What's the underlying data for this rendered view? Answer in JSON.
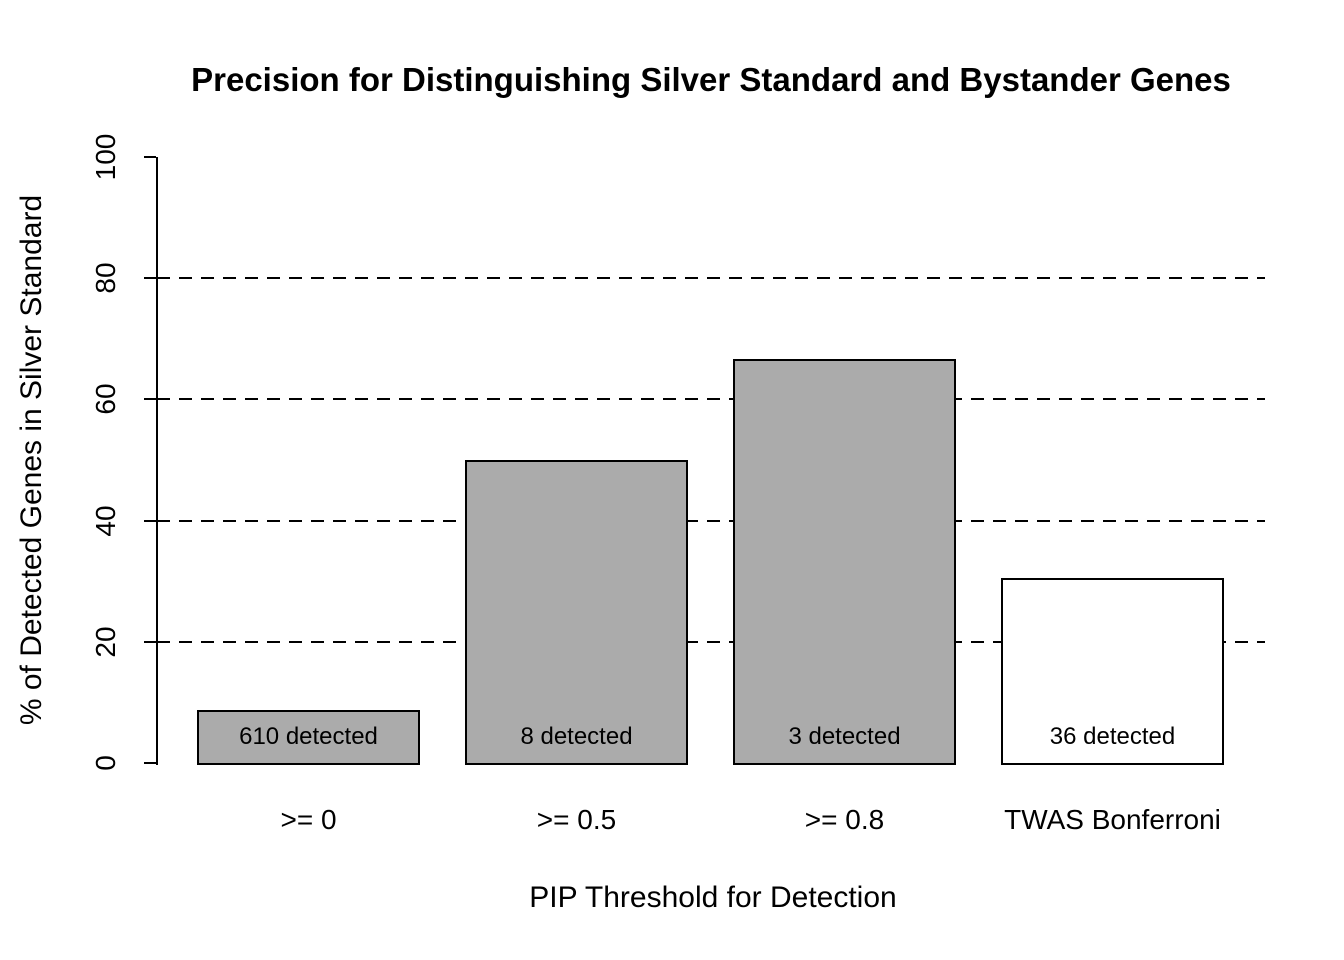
{
  "chart_data": {
    "type": "bar",
    "title": "Precision for Distinguishing Silver Standard and Bystander Genes",
    "xlabel": "PIP Threshold for Detection",
    "ylabel": "% of Detected Genes in Silver Standard",
    "categories": [
      ">= 0",
      ">= 0.5",
      ">= 0.8",
      "TWAS Bonferroni"
    ],
    "values": [
      8.7,
      50,
      66.7,
      30.6
    ],
    "bar_labels": [
      "610 detected",
      "8 detected",
      "3 detected",
      "36 detected"
    ],
    "bar_colors": [
      "#ababab",
      "#ababab",
      "#ababab",
      "#ffffff"
    ],
    "bar_border_color": "#000000",
    "ylim": [
      0,
      100
    ],
    "yticks": [
      0,
      20,
      40,
      60,
      80,
      100
    ],
    "gridlines": [
      20,
      40,
      60,
      80
    ],
    "grid_style": "dashed",
    "grid_color": "#000000",
    "legend": "none"
  }
}
